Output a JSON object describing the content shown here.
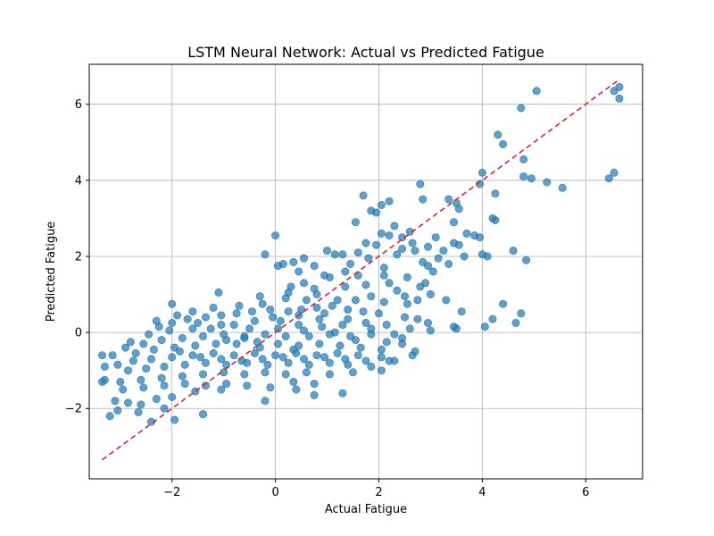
{
  "chart_data": {
    "type": "scatter",
    "title": "LSTM Neural Network: Actual vs Predicted Fatigue",
    "xlabel": "Actual Fatigue",
    "ylabel": "Predicted Fatigue",
    "xlim": [
      -3.6,
      7.1
    ],
    "ylim": [
      -3.85,
      7.05
    ],
    "xticks": [
      -2,
      0,
      2,
      4,
      6
    ],
    "yticks": [
      -2,
      0,
      2,
      4,
      6
    ],
    "xtick_labels": [
      "−2",
      "0",
      "2",
      "4",
      "6"
    ],
    "ytick_labels": [
      "−2",
      "0",
      "2",
      "4",
      "6"
    ],
    "grid": true,
    "point_color": "#1f77b4",
    "reference_line": {
      "x": [
        -3.35,
        6.65
      ],
      "y": [
        -3.35,
        6.65
      ],
      "color": "#d62728",
      "style": "dashed"
    },
    "points": [
      [
        6.65,
        6.45
      ],
      [
        6.55,
        6.35
      ],
      [
        5.05,
        6.35
      ],
      [
        6.65,
        6.15
      ],
      [
        4.75,
        5.9
      ],
      [
        4.3,
        5.2
      ],
      [
        4.4,
        4.95
      ],
      [
        4.8,
        4.55
      ],
      [
        4.8,
        4.1
      ],
      [
        4.95,
        4.05
      ],
      [
        5.25,
        3.95
      ],
      [
        5.55,
        3.8
      ],
      [
        6.55,
        4.2
      ],
      [
        6.45,
        4.05
      ],
      [
        4.0,
        4.2
      ],
      [
        4.25,
        3.65
      ],
      [
        3.95,
        3.9
      ],
      [
        2.8,
        3.9
      ],
      [
        1.7,
        3.6
      ],
      [
        2.2,
        3.45
      ],
      [
        2.05,
        3.35
      ],
      [
        3.35,
        3.5
      ],
      [
        3.5,
        3.4
      ],
      [
        3.55,
        3.25
      ],
      [
        4.2,
        3.0
      ],
      [
        4.25,
        2.95
      ],
      [
        2.85,
        3.5
      ],
      [
        1.85,
        3.2
      ],
      [
        1.95,
        3.15
      ],
      [
        2.3,
        2.8
      ],
      [
        1.55,
        2.9
      ],
      [
        3.45,
        2.9
      ],
      [
        2.6,
        2.65
      ],
      [
        2.05,
        2.6
      ],
      [
        2.45,
        2.5
      ],
      [
        3.7,
        2.6
      ],
      [
        3.85,
        2.55
      ],
      [
        3.95,
        2.5
      ],
      [
        3.45,
        2.35
      ],
      [
        3.55,
        2.3
      ],
      [
        4.6,
        2.15
      ],
      [
        4.0,
        2.05
      ],
      [
        4.1,
        2.0
      ],
      [
        4.85,
        1.9
      ],
      [
        2.95,
        2.25
      ],
      [
        2.45,
        2.2
      ],
      [
        1.75,
        2.35
      ],
      [
        1.95,
        2.3
      ],
      [
        1.6,
        2.1
      ],
      [
        1.3,
        2.05
      ],
      [
        1.0,
        2.15
      ],
      [
        1.15,
        2.05
      ],
      [
        0.55,
        1.95
      ],
      [
        0.35,
        1.85
      ],
      [
        0.15,
        1.8
      ],
      [
        0.05,
        1.75
      ],
      [
        -0.2,
        2.05
      ],
      [
        0.0,
        2.55
      ],
      [
        2.7,
        2.15
      ],
      [
        2.85,
        1.85
      ],
      [
        3.15,
        1.95
      ],
      [
        3.35,
        1.8
      ],
      [
        3.05,
        1.6
      ],
      [
        2.95,
        1.75
      ],
      [
        2.1,
        1.7
      ],
      [
        1.35,
        1.6
      ],
      [
        0.95,
        1.5
      ],
      [
        1.05,
        1.45
      ],
      [
        1.6,
        1.5
      ],
      [
        2.2,
        1.3
      ],
      [
        2.35,
        1.1
      ],
      [
        2.8,
        1.2
      ],
      [
        1.75,
        1.25
      ],
      [
        0.55,
        1.3
      ],
      [
        0.3,
        1.2
      ],
      [
        0.8,
        1.0
      ],
      [
        -1.1,
        1.05
      ],
      [
        -2.0,
        0.75
      ],
      [
        -0.3,
        0.95
      ],
      [
        0.2,
        0.9
      ],
      [
        0.6,
        0.85
      ],
      [
        1.2,
        0.85
      ],
      [
        2.1,
        0.8
      ],
      [
        2.55,
        0.75
      ],
      [
        2.75,
        0.85
      ],
      [
        3.3,
        0.85
      ],
      [
        3.6,
        0.55
      ],
      [
        4.4,
        0.75
      ],
      [
        4.75,
        0.5
      ],
      [
        4.65,
        0.25
      ],
      [
        4.2,
        0.35
      ],
      [
        4.05,
        0.15
      ],
      [
        3.45,
        0.15
      ],
      [
        2.95,
        0.25
      ],
      [
        2.75,
        0.35
      ],
      [
        2.5,
        0.4
      ],
      [
        2.0,
        0.5
      ],
      [
        1.7,
        0.55
      ],
      [
        1.4,
        0.6
      ],
      [
        1.1,
        0.7
      ],
      [
        0.8,
        0.65
      ],
      [
        0.5,
        0.6
      ],
      [
        0.25,
        0.55
      ],
      [
        -0.1,
        0.6
      ],
      [
        -0.45,
        0.55
      ],
      [
        -0.75,
        0.5
      ],
      [
        -1.05,
        0.45
      ],
      [
        -1.35,
        0.4
      ],
      [
        -1.7,
        0.35
      ],
      [
        -2.0,
        0.25
      ],
      [
        -2.3,
        0.3
      ],
      [
        -2.25,
        0.15
      ],
      [
        -1.5,
        0.25
      ],
      [
        -0.8,
        0.2
      ],
      [
        -0.4,
        0.3
      ],
      [
        0.1,
        0.3
      ],
      [
        0.45,
        0.2
      ],
      [
        0.9,
        0.15
      ],
      [
        1.3,
        0.2
      ],
      [
        1.75,
        0.25
      ],
      [
        2.15,
        0.2
      ],
      [
        2.6,
        0.1
      ],
      [
        3.0,
        0.05
      ],
      [
        2.3,
        -0.05
      ],
      [
        1.85,
        -0.05
      ],
      [
        1.45,
        -0.1
      ],
      [
        1.05,
        -0.05
      ],
      [
        0.65,
        -0.1
      ],
      [
        0.2,
        -0.1
      ],
      [
        -0.2,
        -0.05
      ],
      [
        -0.6,
        -0.1
      ],
      [
        -1.0,
        -0.05
      ],
      [
        -1.4,
        -0.1
      ],
      [
        -1.8,
        -0.15
      ],
      [
        -2.2,
        -0.2
      ],
      [
        -2.55,
        -0.3
      ],
      [
        -2.9,
        -0.4
      ],
      [
        -3.15,
        -0.6
      ],
      [
        -3.35,
        -0.6
      ],
      [
        -2.7,
        -0.55
      ],
      [
        -2.35,
        -0.45
      ],
      [
        -1.95,
        -0.4
      ],
      [
        -1.55,
        -0.35
      ],
      [
        -1.15,
        -0.3
      ],
      [
        -0.75,
        -0.3
      ],
      [
        -0.35,
        -0.25
      ],
      [
        0.05,
        -0.3
      ],
      [
        0.45,
        -0.35
      ],
      [
        0.85,
        -0.3
      ],
      [
        1.25,
        -0.35
      ],
      [
        1.65,
        -0.4
      ],
      [
        2.05,
        -0.45
      ],
      [
        2.45,
        -0.3
      ],
      [
        2.7,
        -0.5
      ],
      [
        2.05,
        -0.65
      ],
      [
        1.6,
        -0.6
      ],
      [
        1.2,
        -0.55
      ],
      [
        0.8,
        -0.6
      ],
      [
        0.4,
        -0.55
      ],
      [
        0.0,
        -0.6
      ],
      [
        -0.4,
        -0.55
      ],
      [
        -0.8,
        -0.6
      ],
      [
        -1.2,
        -0.55
      ],
      [
        -1.6,
        -0.6
      ],
      [
        -2.0,
        -0.65
      ],
      [
        -2.4,
        -0.7
      ],
      [
        -2.75,
        -0.75
      ],
      [
        -3.05,
        -0.85
      ],
      [
        -3.3,
        -0.9
      ],
      [
        -2.85,
        -1.0
      ],
      [
        -2.5,
        -0.95
      ],
      [
        -2.15,
        -0.9
      ],
      [
        -1.75,
        -0.85
      ],
      [
        -1.35,
        -0.8
      ],
      [
        -0.95,
        -0.85
      ],
      [
        -0.55,
        -0.8
      ],
      [
        -0.15,
        -0.85
      ],
      [
        0.25,
        -0.8
      ],
      [
        0.65,
        -0.85
      ],
      [
        1.05,
        -0.8
      ],
      [
        1.4,
        -0.85
      ],
      [
        1.85,
        -0.9
      ],
      [
        2.2,
        -0.75
      ],
      [
        2.05,
        -1.0
      ],
      [
        1.5,
        -1.05
      ],
      [
        1.05,
        -1.1
      ],
      [
        0.6,
        -1.05
      ],
      [
        0.2,
        -1.1
      ],
      [
        -0.2,
        -1.05
      ],
      [
        -0.6,
        -1.1
      ],
      [
        -1.0,
        -1.05
      ],
      [
        -1.4,
        -1.1
      ],
      [
        -1.8,
        -1.15
      ],
      [
        -2.2,
        -1.2
      ],
      [
        -2.6,
        -1.25
      ],
      [
        -3.0,
        -1.3
      ],
      [
        -3.3,
        -1.25
      ],
      [
        -3.35,
        -1.3
      ],
      [
        -2.95,
        -1.5
      ],
      [
        -2.55,
        -1.45
      ],
      [
        -2.15,
        -1.4
      ],
      [
        -1.75,
        -1.35
      ],
      [
        -1.35,
        -1.4
      ],
      [
        -0.95,
        -1.35
      ],
      [
        -0.55,
        -1.4
      ],
      [
        -0.1,
        -1.45
      ],
      [
        0.35,
        -1.3
      ],
      [
        0.75,
        -1.35
      ],
      [
        0.4,
        -1.5
      ],
      [
        0.75,
        -1.65
      ],
      [
        1.3,
        -1.6
      ],
      [
        -0.2,
        -1.8
      ],
      [
        -1.05,
        -1.5
      ],
      [
        -1.55,
        -1.55
      ],
      [
        -2.0,
        -1.7
      ],
      [
        -2.3,
        -1.75
      ],
      [
        -2.6,
        -1.9
      ],
      [
        -2.85,
        -1.85
      ],
      [
        -3.1,
        -1.8
      ],
      [
        -3.05,
        -2.05
      ],
      [
        -3.2,
        -2.2
      ],
      [
        -2.65,
        -2.1
      ],
      [
        -2.4,
        -2.35
      ],
      [
        -2.15,
        -2.0
      ],
      [
        -1.95,
        -2.3
      ],
      [
        -1.4,
        -2.15
      ],
      [
        -0.6,
        -0.15
      ],
      [
        -1.25,
        0.1
      ],
      [
        -0.95,
        -0.2
      ],
      [
        -0.3,
        -0.4
      ],
      [
        0.35,
        -0.45
      ],
      [
        0.85,
        0.35
      ],
      [
        1.4,
        0.35
      ],
      [
        1.85,
        0.1
      ],
      [
        2.45,
        -0.15
      ],
      [
        2.15,
        -0.25
      ],
      [
        1.55,
        -0.2
      ],
      [
        1.15,
        0.0
      ],
      [
        0.55,
        0.05
      ],
      [
        0.05,
        0.1
      ],
      [
        -0.5,
        0.1
      ],
      [
        -1.05,
        0.2
      ],
      [
        -1.6,
        0.1
      ],
      [
        -2.05,
        0.05
      ],
      [
        -2.45,
        -0.05
      ],
      [
        -2.8,
        -0.25
      ],
      [
        -1.85,
        -0.5
      ],
      [
        -1.45,
        -0.65
      ],
      [
        -1.05,
        -0.7
      ],
      [
        -0.65,
        -0.75
      ],
      [
        -0.25,
        -0.7
      ],
      [
        0.15,
        -0.65
      ],
      [
        0.55,
        -0.7
      ],
      [
        0.95,
        -0.65
      ],
      [
        1.35,
        -0.7
      ],
      [
        1.75,
        -0.75
      ],
      [
        -0.05,
        0.4
      ],
      [
        0.45,
        0.45
      ],
      [
        0.95,
        0.5
      ],
      [
        1.55,
        0.85
      ],
      [
        1.85,
        0.95
      ],
      [
        2.5,
        0.95
      ],
      [
        3.0,
        1.0
      ],
      [
        2.55,
        1.45
      ],
      [
        2.1,
        1.5
      ],
      [
        1.35,
        1.2
      ],
      [
        0.75,
        1.15
      ],
      [
        0.25,
        1.05
      ],
      [
        -0.25,
        0.75
      ],
      [
        -0.7,
        0.7
      ],
      [
        -1.2,
        0.65
      ],
      [
        -1.6,
        0.55
      ],
      [
        -1.9,
        0.45
      ],
      [
        2.35,
        2.05
      ],
      [
        2.65,
        2.35
      ],
      [
        3.1,
        2.5
      ],
      [
        3.25,
        2.15
      ],
      [
        2.2,
        2.55
      ],
      [
        1.8,
        1.95
      ],
      [
        1.45,
        1.8
      ],
      [
        0.75,
        1.75
      ],
      [
        0.45,
        1.6
      ],
      [
        3.65,
        2.0
      ],
      [
        2.9,
        1.3
      ],
      [
        3.5,
        0.1
      ],
      [
        2.65,
        -0.6
      ],
      [
        2.3,
        -0.75
      ]
    ]
  }
}
